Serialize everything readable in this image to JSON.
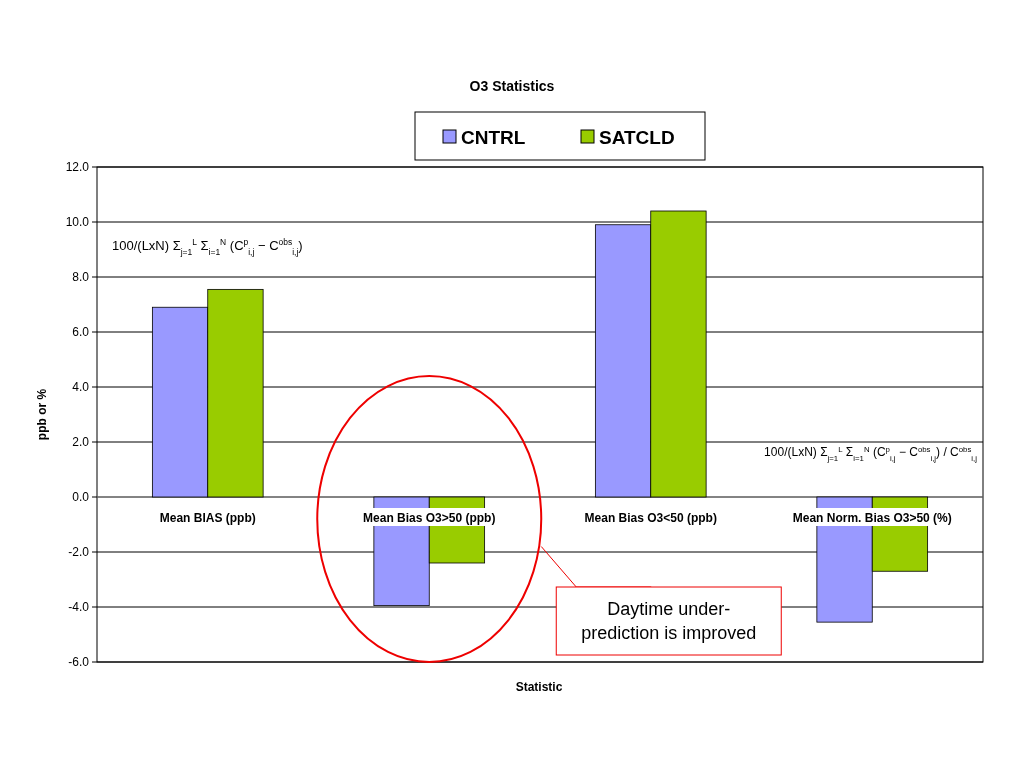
{
  "chart_data": {
    "type": "bar",
    "title": "O3 Statistics",
    "xlabel": "Statistic",
    "ylabel": "ppb or %",
    "categories": [
      "Mean BIAS (ppb)",
      "Mean Bias O3>50 (ppb)",
      "Mean Bias O3<50 (ppb)",
      "Mean Norm. Bias O3>50 (%)"
    ],
    "series": [
      {
        "name": "CNTRL",
        "color": "#9999ff",
        "values": [
          6.9,
          -3.95,
          9.9,
          -4.55
        ]
      },
      {
        "name": "SATCLD",
        "color": "#99cc00",
        "values": [
          7.55,
          -2.4,
          10.4,
          -2.7
        ]
      }
    ],
    "ylim": [
      -6,
      12
    ],
    "yticks": [
      {
        "value": -6,
        "label": "-6.0"
      },
      {
        "value": -4,
        "label": "-4.0"
      },
      {
        "value": -2,
        "label": "-2.0"
      },
      {
        "value": 0,
        "label": "0.0"
      },
      {
        "value": 2,
        "label": "2.0"
      },
      {
        "value": 4,
        "label": "4.0"
      },
      {
        "value": 6,
        "label": "6.0"
      },
      {
        "value": 8,
        "label": "8.0"
      },
      {
        "value": 10,
        "label": "10.0"
      },
      {
        "value": 12,
        "label": "12.0"
      }
    ],
    "grid": "y",
    "legend": "top",
    "annotations": [
      "100/(LxN) Σ$_{j=1}$$^{L}$ Σ$_{i=1}$$^{N}$ (C$^{p}$$_{i,j}$ − C$^{obs}$$_{i,j}$)",
      "100/(LxN) Σ$_{j=1}$$^{L}$ Σ$_{i=1}$$^{N}$ (C$^{p}$$_{i,j}$ − C$^{obs}$$_{i,j}$) / C$^{obs}$$_{i,j}$",
      "Daytime under-prediction is improved"
    ]
  }
}
